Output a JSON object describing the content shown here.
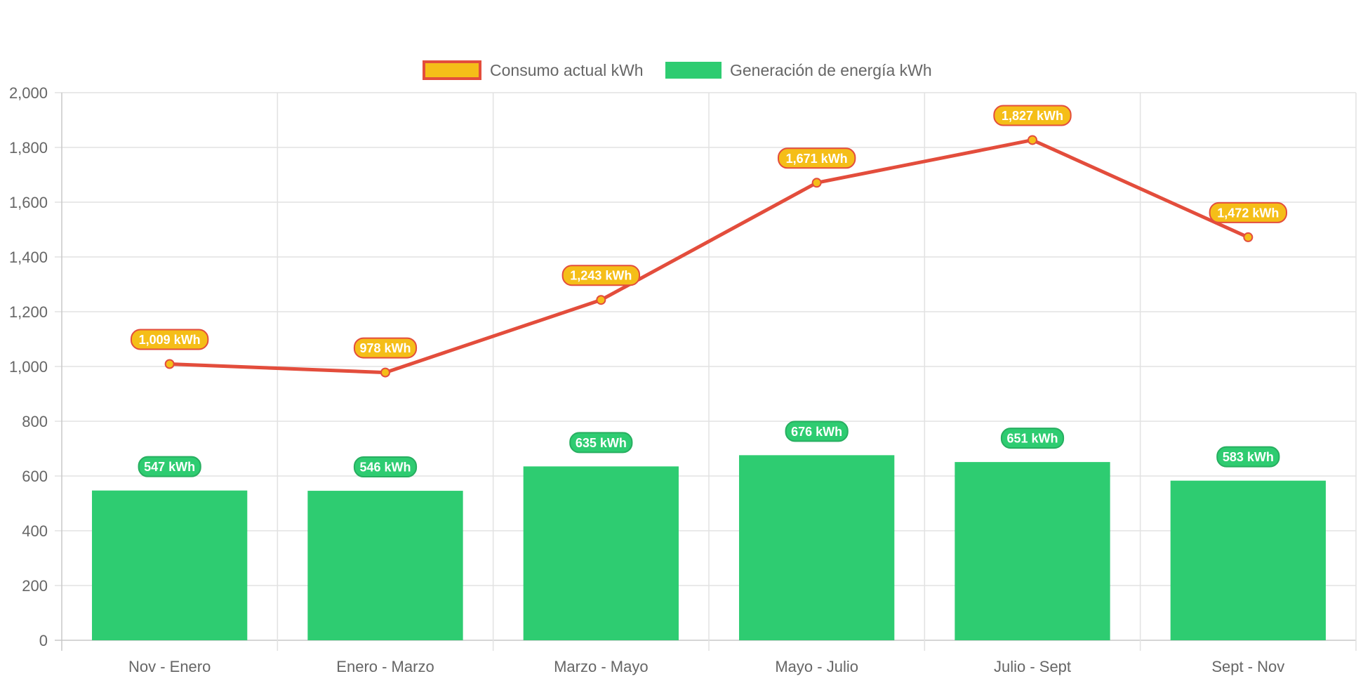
{
  "chart_data": {
    "type": "bar",
    "categories": [
      "Nov - Enero",
      "Enero - Marzo",
      "Marzo - Mayo",
      "Mayo - Julio",
      "Julio - Sept",
      "Sept - Nov"
    ],
    "series": [
      {
        "name": "Consumo actual kWh",
        "type": "line",
        "values": [
          1009,
          978,
          1243,
          1671,
          1827,
          1472
        ],
        "labels": [
          "1,009 kWh",
          "978 kWh",
          "1,243 kWh",
          "1,671 kWh",
          "1,827 kWh",
          "1,472 kWh"
        ],
        "line_color": "#e34d3c",
        "fill_color": "#f5be18"
      },
      {
        "name": "Generación de energía kWh",
        "type": "bar",
        "values": [
          547,
          546,
          635,
          676,
          651,
          583
        ],
        "labels": [
          "547 kWh",
          "546 kWh",
          "635 kWh",
          "676 kWh",
          "651 kWh",
          "583 kWh"
        ],
        "fill_color": "#2ecc71",
        "label_border_color": "#27ae60"
      }
    ],
    "ylim": [
      0,
      2000
    ],
    "yticks": [
      0,
      200,
      400,
      600,
      800,
      1000,
      1200,
      1400,
      1600,
      1800,
      2000
    ],
    "ytick_labels": [
      "0",
      "200",
      "400",
      "600",
      "800",
      "1,000",
      "1,200",
      "1,400",
      "1,600",
      "1,800",
      "2,000"
    ],
    "grid": true,
    "legend_position": "top-center",
    "title": "",
    "xlabel": "",
    "ylabel": ""
  }
}
